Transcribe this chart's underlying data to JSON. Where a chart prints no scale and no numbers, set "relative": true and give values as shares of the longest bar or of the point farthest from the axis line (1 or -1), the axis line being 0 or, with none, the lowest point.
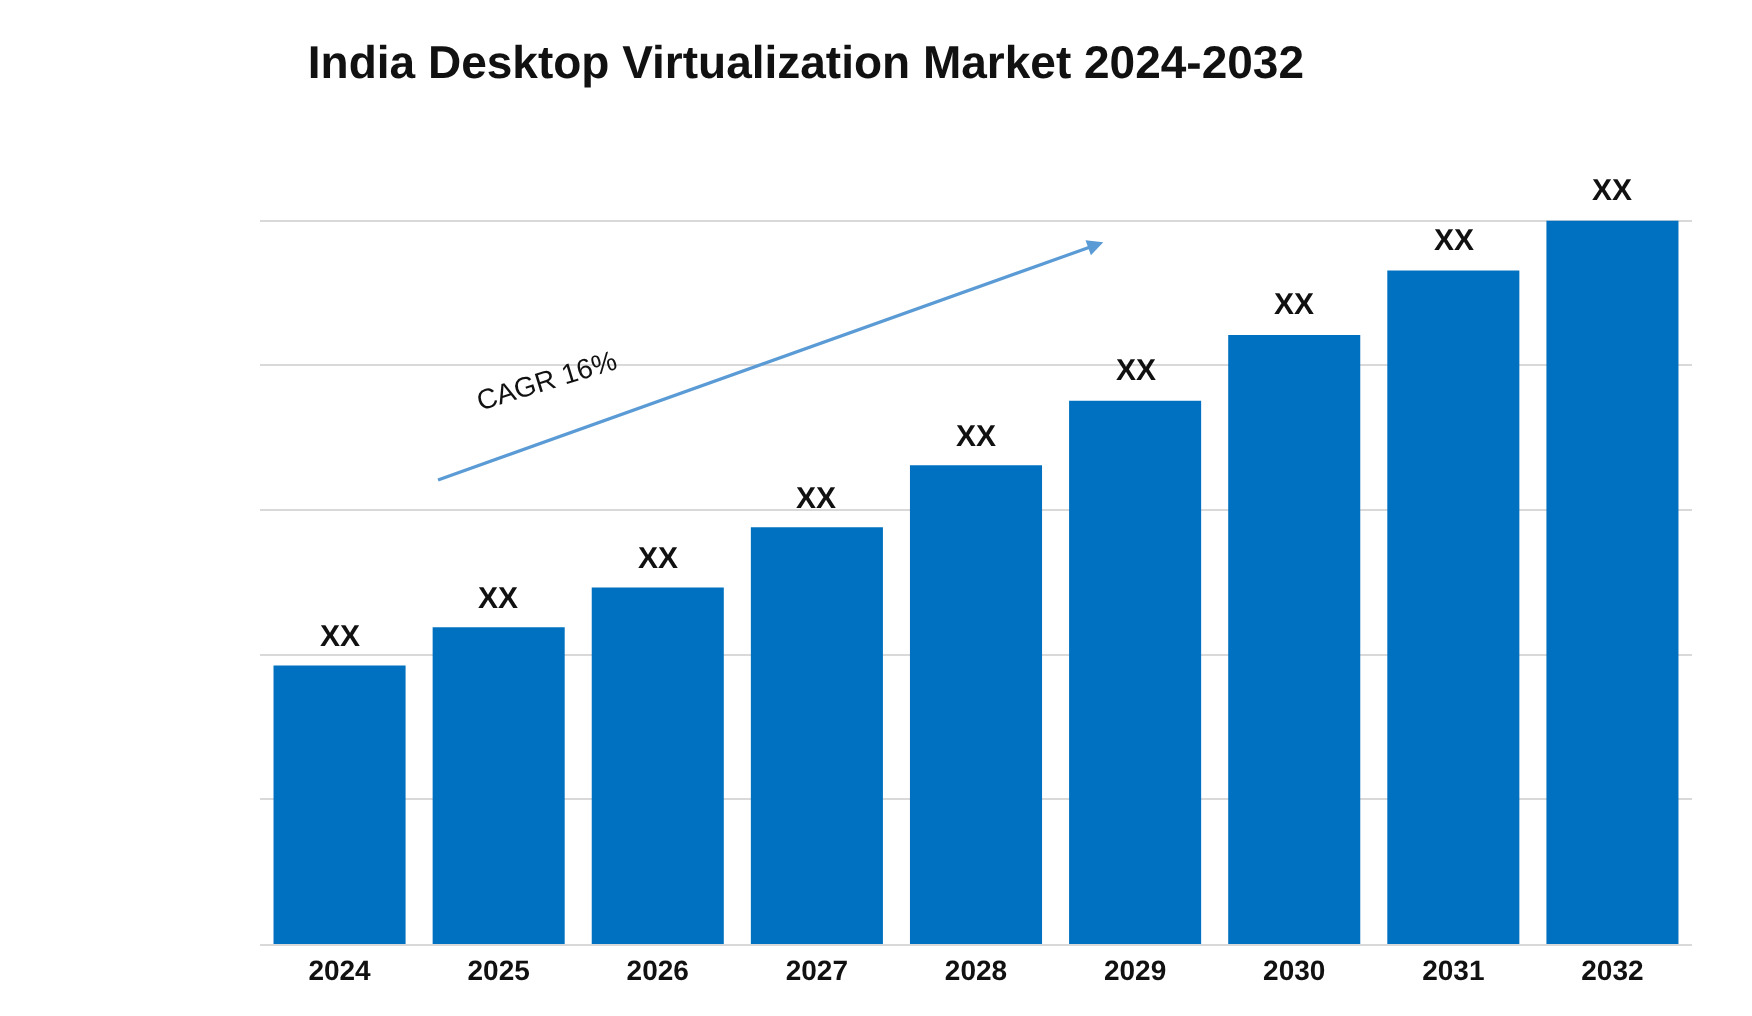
{
  "chart_data": {
    "type": "bar",
    "title": "India Desktop Virtualization Market 2024-2032",
    "categories": [
      "2024",
      "2025",
      "2026",
      "2027",
      "2028",
      "2029",
      "2030",
      "2031",
      "2032"
    ],
    "values": [
      0.385,
      0.438,
      0.493,
      0.576,
      0.662,
      0.751,
      0.842,
      0.931,
      1
    ],
    "color": "#0070c0",
    "relative": true,
    "grid": "y",
    "legend": false,
    "annotations": [
      "CAGR 16%",
      {
        "text": "XX",
        "x": "2024",
        "y": 0.385
      },
      {
        "text": "XX",
        "x": "2025",
        "y": 0.438
      },
      {
        "text": "XX",
        "x": "2026",
        "y": 0.493
      },
      {
        "text": "XX",
        "x": "2027",
        "y": 0.576
      },
      {
        "text": "XX",
        "x": "2028",
        "y": 0.662
      },
      {
        "text": "XX",
        "x": "2029",
        "y": 0.751
      },
      {
        "text": "XX",
        "x": "2030",
        "y": 0.842
      },
      {
        "text": "XX",
        "x": "2031",
        "y": 0.931
      },
      {
        "text": "XX",
        "x": "2032",
        "y": 1
      }
    ]
  }
}
